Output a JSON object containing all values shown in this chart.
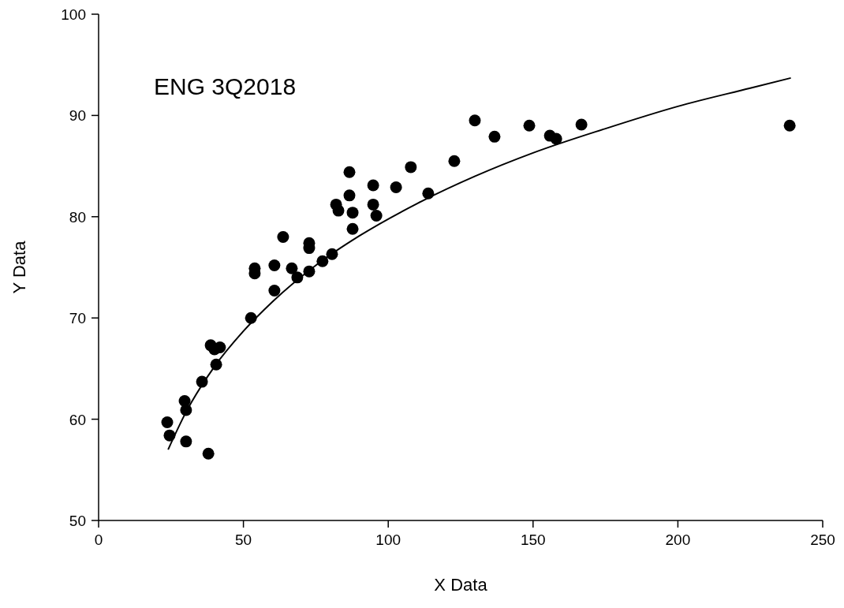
{
  "chart_data": {
    "type": "scatter",
    "xlabel": "X Data",
    "ylabel": "Y Data",
    "annotations": [
      "ENG 3Q2018"
    ],
    "xlim": [
      0,
      250
    ],
    "ylim": [
      50,
      100
    ],
    "xticks": [
      0,
      50,
      100,
      150,
      200,
      250
    ],
    "yticks": [
      50,
      60,
      70,
      80,
      90,
      100
    ],
    "grid": false,
    "series": [
      {
        "color": "#000000",
        "marker": "circle",
        "x": [
          23.7,
          24.5,
          30.2,
          37.9,
          30.2,
          29.7,
          35.7,
          40.6,
          38.7,
          40,
          41.9,
          52.6,
          60.7,
          53.9,
          53.9,
          60.7,
          66.7,
          68.6,
          63.7,
          72.7,
          72.7,
          72.7,
          77.3,
          80.6,
          82,
          82.8,
          86.6,
          86.6,
          87.7,
          87.7,
          94.8,
          94.8,
          95.9,
          102.7,
          107.8,
          113.8,
          122.8,
          129.9,
          136.7,
          148.7,
          155.8,
          158,
          166.7,
          238.6
        ],
        "values": [
          59.7,
          58.4,
          57.8,
          56.6,
          60.9,
          61.8,
          63.7,
          65.4,
          67.3,
          66.9,
          67.1,
          70,
          72.7,
          74.9,
          74.4,
          75.2,
          74.9,
          74,
          78,
          77.4,
          76.9,
          74.6,
          75.6,
          76.3,
          81.2,
          80.6,
          82.1,
          84.4,
          80.4,
          78.8,
          83.1,
          81.2,
          80.1,
          82.9,
          84.9,
          82.3,
          85.5,
          89.5,
          87.9,
          89,
          88,
          87.7,
          89.1,
          89
        ]
      },
      {
        "type": "line",
        "color": "#000000",
        "line_style": "solid",
        "x": [
          24,
          30,
          40,
          50,
          60,
          75,
          90,
          110,
          130,
          150,
          175,
          200,
          225,
          239
        ],
        "values": [
          57.0,
          60.6,
          65.2,
          68.7,
          71.6,
          75.2,
          78.1,
          81.3,
          84.0,
          86.3,
          88.7,
          90.9,
          92.7,
          93.7
        ]
      }
    ]
  }
}
